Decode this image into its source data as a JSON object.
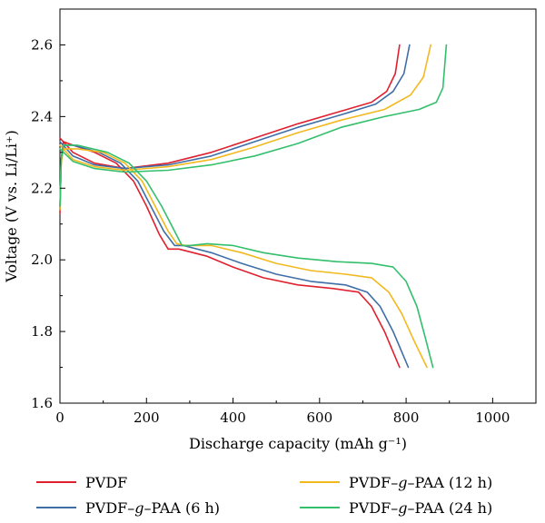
{
  "chart_data": {
    "type": "line",
    "xlabel": "Discharge capacity (mAh g⁻¹)",
    "ylabel": "Voltage  (V vs. Li/Li⁺)",
    "xlim": [
      0,
      1100
    ],
    "ylim": [
      1.6,
      2.7
    ],
    "x_ticks": [
      0,
      200,
      400,
      600,
      800,
      1000
    ],
    "y_ticks": [
      1.6,
      1.8,
      2.0,
      2.2,
      2.4,
      2.6
    ],
    "x_tick_labels": [
      "0",
      "200",
      "400",
      "600",
      "800",
      "1000"
    ],
    "y_tick_labels": [
      "1.6",
      "1.8",
      "2.0",
      "2.2",
      "2.4",
      "2.6"
    ],
    "grid": false,
    "legend_position": "bottom",
    "series": [
      {
        "name": "PVDF",
        "color": "#e0202e",
        "discharge": [
          [
            0,
            2.13
          ],
          [
            3,
            2.28
          ],
          [
            8,
            2.33
          ],
          [
            30,
            2.32
          ],
          [
            80,
            2.3
          ],
          [
            130,
            2.27
          ],
          [
            170,
            2.22
          ],
          [
            200,
            2.15
          ],
          [
            230,
            2.07
          ],
          [
            250,
            2.03
          ],
          [
            275,
            2.03
          ],
          [
            340,
            2.01
          ],
          [
            400,
            1.98
          ],
          [
            470,
            1.95
          ],
          [
            550,
            1.93
          ],
          [
            630,
            1.92
          ],
          [
            690,
            1.91
          ],
          [
            720,
            1.87
          ],
          [
            750,
            1.8
          ],
          [
            785,
            1.7
          ]
        ],
        "charge": [
          [
            0,
            2.34
          ],
          [
            30,
            2.3
          ],
          [
            80,
            2.27
          ],
          [
            150,
            2.255
          ],
          [
            250,
            2.27
          ],
          [
            350,
            2.3
          ],
          [
            450,
            2.34
          ],
          [
            550,
            2.38
          ],
          [
            650,
            2.415
          ],
          [
            720,
            2.44
          ],
          [
            755,
            2.47
          ],
          [
            775,
            2.52
          ],
          [
            785,
            2.6
          ]
        ]
      },
      {
        "name": "PVDF–g–PAA (6 h)",
        "color": "#3f6ea6",
        "discharge": [
          [
            0,
            2.14
          ],
          [
            3,
            2.28
          ],
          [
            8,
            2.32
          ],
          [
            30,
            2.32
          ],
          [
            90,
            2.3
          ],
          [
            140,
            2.27
          ],
          [
            180,
            2.22
          ],
          [
            210,
            2.15
          ],
          [
            240,
            2.08
          ],
          [
            265,
            2.04
          ],
          [
            285,
            2.04
          ],
          [
            350,
            2.02
          ],
          [
            420,
            1.99
          ],
          [
            500,
            1.96
          ],
          [
            580,
            1.94
          ],
          [
            660,
            1.93
          ],
          [
            710,
            1.91
          ],
          [
            740,
            1.87
          ],
          [
            770,
            1.8
          ],
          [
            805,
            1.7
          ]
        ],
        "charge": [
          [
            0,
            2.33
          ],
          [
            30,
            2.29
          ],
          [
            80,
            2.265
          ],
          [
            150,
            2.255
          ],
          [
            250,
            2.265
          ],
          [
            350,
            2.29
          ],
          [
            450,
            2.33
          ],
          [
            550,
            2.37
          ],
          [
            650,
            2.405
          ],
          [
            730,
            2.435
          ],
          [
            770,
            2.47
          ],
          [
            795,
            2.52
          ],
          [
            808,
            2.6
          ]
        ]
      },
      {
        "name": "PVDF–g–PAA (12 h)",
        "color": "#f2b91f",
        "discharge": [
          [
            0,
            2.14
          ],
          [
            3,
            2.27
          ],
          [
            8,
            2.31
          ],
          [
            40,
            2.31
          ],
          [
            100,
            2.3
          ],
          [
            150,
            2.27
          ],
          [
            190,
            2.22
          ],
          [
            220,
            2.15
          ],
          [
            250,
            2.08
          ],
          [
            270,
            2.045
          ],
          [
            290,
            2.04
          ],
          [
            350,
            2.04
          ],
          [
            420,
            2.02
          ],
          [
            500,
            1.99
          ],
          [
            580,
            1.97
          ],
          [
            660,
            1.96
          ],
          [
            720,
            1.95
          ],
          [
            760,
            1.91
          ],
          [
            790,
            1.85
          ],
          [
            820,
            1.77
          ],
          [
            848,
            1.7
          ]
        ],
        "charge": [
          [
            0,
            2.32
          ],
          [
            30,
            2.28
          ],
          [
            80,
            2.26
          ],
          [
            150,
            2.25
          ],
          [
            250,
            2.26
          ],
          [
            350,
            2.28
          ],
          [
            450,
            2.315
          ],
          [
            550,
            2.355
          ],
          [
            650,
            2.39
          ],
          [
            750,
            2.42
          ],
          [
            810,
            2.46
          ],
          [
            840,
            2.51
          ],
          [
            857,
            2.6
          ]
        ]
      },
      {
        "name": "PVDF–g–PAA (24 h)",
        "color": "#33bf6c",
        "discharge": [
          [
            0,
            2.15
          ],
          [
            3,
            2.28
          ],
          [
            8,
            2.32
          ],
          [
            40,
            2.32
          ],
          [
            110,
            2.3
          ],
          [
            160,
            2.27
          ],
          [
            200,
            2.22
          ],
          [
            235,
            2.15
          ],
          [
            265,
            2.08
          ],
          [
            282,
            2.04
          ],
          [
            300,
            2.04
          ],
          [
            340,
            2.045
          ],
          [
            400,
            2.04
          ],
          [
            470,
            2.02
          ],
          [
            550,
            2.005
          ],
          [
            640,
            1.995
          ],
          [
            720,
            1.99
          ],
          [
            770,
            1.98
          ],
          [
            800,
            1.94
          ],
          [
            825,
            1.87
          ],
          [
            845,
            1.78
          ],
          [
            862,
            1.7
          ]
        ],
        "charge": [
          [
            0,
            2.31
          ],
          [
            30,
            2.275
          ],
          [
            80,
            2.255
          ],
          [
            150,
            2.245
          ],
          [
            250,
            2.25
          ],
          [
            350,
            2.265
          ],
          [
            450,
            2.29
          ],
          [
            550,
            2.325
          ],
          [
            650,
            2.37
          ],
          [
            750,
            2.4
          ],
          [
            830,
            2.42
          ],
          [
            870,
            2.44
          ],
          [
            885,
            2.48
          ],
          [
            893,
            2.6
          ]
        ]
      }
    ]
  }
}
